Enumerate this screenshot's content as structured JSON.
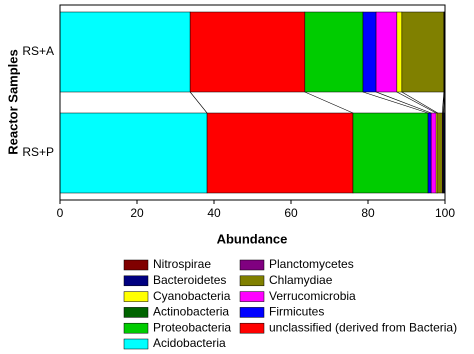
{
  "chart_data": {
    "type": "stacked_barh",
    "categories": [
      "RS+A",
      "RS+P"
    ],
    "xlabel": "Abundance",
    "ylabel": "Reactor Samples",
    "xlim": [
      0,
      100
    ],
    "xticks": [
      0,
      20,
      40,
      60,
      80,
      100
    ],
    "legend": "bottom",
    "series": [
      {
        "name": "Acidobacteria",
        "color": "#00ffff",
        "values": [
          33.8,
          38.2
        ]
      },
      {
        "name": "unclassified (derived from Bacteria)",
        "color": "#ff0000",
        "values": [
          29.8,
          37.9
        ]
      },
      {
        "name": "Proteobacteria",
        "color": "#00cc00",
        "values": [
          15.1,
          19.5
        ]
      },
      {
        "name": "Firmicutes",
        "color": "#0000ff",
        "values": [
          3.4,
          0.8
        ]
      },
      {
        "name": "Verrucomicrobia",
        "color": "#ff00ff",
        "values": [
          5.4,
          1.3
        ]
      },
      {
        "name": "Cyanobacteria",
        "color": "#ffff00",
        "values": [
          1.3,
          0.4
        ]
      },
      {
        "name": "Chlamydiae",
        "color": "#808000",
        "values": [
          10.9,
          1.2
        ]
      },
      {
        "name": "Planctomycetes",
        "color": "#800080",
        "values": [
          0.1,
          0.2
        ]
      },
      {
        "name": "Actinobacteria",
        "color": "#006400",
        "values": [
          0.1,
          0.2
        ]
      },
      {
        "name": "Bacteroidetes",
        "color": "#000080",
        "values": [
          0.05,
          0.2
        ]
      },
      {
        "name": "Nitrospirae",
        "color": "#800000",
        "values": [
          0.05,
          0.1
        ]
      }
    ]
  }
}
